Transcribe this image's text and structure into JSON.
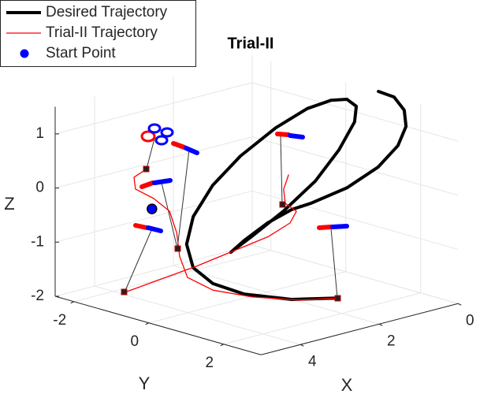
{
  "chart_data": {
    "type": "line3d",
    "title": "Trial-II",
    "xlabel": "X",
    "ylabel": "Y",
    "zlabel": "Z",
    "xlim": [
      0,
      5
    ],
    "ylim": [
      -2.5,
      3
    ],
    "zlim": [
      -2,
      1.5
    ],
    "xticks": [
      0,
      2,
      4
    ],
    "yticks": [
      -2,
      0,
      2
    ],
    "zticks": [
      -2,
      -1,
      0,
      1
    ],
    "grid": true,
    "legend": "top-left",
    "series": [
      {
        "name": "Desired Trajectory",
        "color": "#000000",
        "mode": "line",
        "linewidth": 4,
        "x": [
          0,
          0,
          0,
          0,
          0.5,
          1,
          1,
          1,
          1,
          1,
          1,
          1,
          1,
          1,
          1,
          1,
          0.5,
          0,
          0,
          0,
          0,
          0,
          1,
          2,
          2,
          2.5,
          3,
          3,
          3,
          3,
          2.5
        ],
        "y": [
          0.87,
          1.29,
          1.56,
          1.61,
          1.92,
          1.92,
          1.08,
          0.13,
          -0.39,
          -1.03,
          -1.66,
          -2.02,
          -1.45,
          -0.61,
          0.24,
          0.87,
          0.76,
          0.28,
          0.03,
          -0.39,
          -1.03,
          -1.87,
          -1.76,
          -1.45,
          -1.97,
          -1.62,
          -0.92,
          -0.39,
          0.45,
          1.71,
          2.41
        ],
        "z": [
          1.5,
          1.48,
          1.29,
          1.0,
          0.8,
          0.5,
          -0.05,
          -0.52,
          -0.74,
          -1.11,
          -1.56,
          -1.85,
          -1.44,
          -0.81,
          -0.09,
          0.61,
          1.01,
          1.11,
          1.19,
          1.09,
          0.81,
          0.29,
          -0.02,
          -0.31,
          -0.99,
          -1.34,
          -1.54,
          -1.73,
          -1.76,
          -1.61,
          -1.54
        ]
      },
      {
        "name": "Trial-II Trajectory",
        "color": "#ff0000",
        "mode": "line",
        "linewidth": 1.3,
        "x": [
          3,
          3.2,
          3.2,
          3.2,
          3,
          3,
          3,
          3,
          3,
          3,
          3,
          2.5,
          null,
          4,
          3,
          2,
          1.5,
          1.5,
          1.5,
          1.5,
          1.5
        ],
        "y": [
          -2.16,
          -2.29,
          -2.25,
          -1.76,
          -1.55,
          -1.36,
          -1.28,
          -1.07,
          -0.39,
          0.66,
          1.92,
          2.41,
          null,
          -1.7,
          -0.82,
          0.03,
          0.09,
          0.26,
          -0.04,
          -0.08,
          0.05
        ],
        "z": [
          0.04,
          -0.1,
          -0.31,
          -0.39,
          -0.62,
          -0.98,
          -1.4,
          -1.75,
          -1.85,
          -1.77,
          -1.58,
          -1.54,
          null,
          -1.96,
          -1.49,
          -0.97,
          -0.8,
          -0.55,
          -0.46,
          -0.21,
          0.08
        ]
      },
      {
        "name": "Start Point",
        "color": "#0000ff",
        "mode": "marker",
        "x": [
          3
        ],
        "y": [
          -2.02
        ],
        "z": [
          -0.67
        ]
      }
    ]
  }
}
